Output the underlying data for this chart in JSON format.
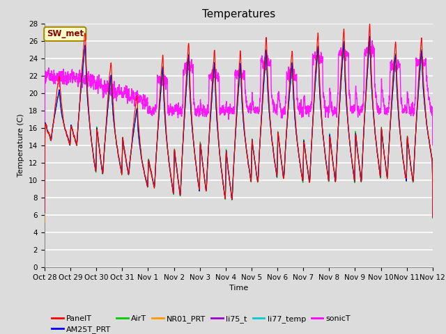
{
  "title": "Temperatures",
  "xlabel": "Time",
  "ylabel": "Temperature (C)",
  "ylim": [
    0,
    28
  ],
  "yticks": [
    0,
    2,
    4,
    6,
    8,
    10,
    12,
    14,
    16,
    18,
    20,
    22,
    24,
    26,
    28
  ],
  "background_color": "#dcdcdc",
  "plot_bg_color": "#dcdcdc",
  "grid_color": "#ffffff",
  "series": {
    "PanelT": {
      "color": "#ff0000",
      "lw": 1.0
    },
    "AM25T_PRT": {
      "color": "#0000ff",
      "lw": 1.0
    },
    "AirT": {
      "color": "#00cc00",
      "lw": 1.0
    },
    "NR01_PRT": {
      "color": "#ff9900",
      "lw": 1.0
    },
    "li75_t": {
      "color": "#9900cc",
      "lw": 1.0
    },
    "li77_temp": {
      "color": "#00cccc",
      "lw": 1.0
    },
    "sonicT": {
      "color": "#ff00ff",
      "lw": 1.0
    }
  },
  "xtick_labels": [
    "Oct 28",
    "Oct 29",
    "Oct 30",
    "Oct 31",
    "Nov 1",
    "Nov 2",
    "Nov 3",
    "Nov 4",
    "Nov 5",
    "Nov 6",
    "Nov 7",
    "Nov 8",
    "Nov 9",
    "Nov 10",
    "Nov 11",
    "Nov 12"
  ],
  "annotation_text": "SW_met",
  "annotation_bg": "#ffffcc",
  "annotation_edge": "#aa8800",
  "annotation_color": "#880000",
  "title_fontsize": 11,
  "axis_fontsize": 8,
  "tick_fontsize": 7.5,
  "legend_fontsize": 8
}
